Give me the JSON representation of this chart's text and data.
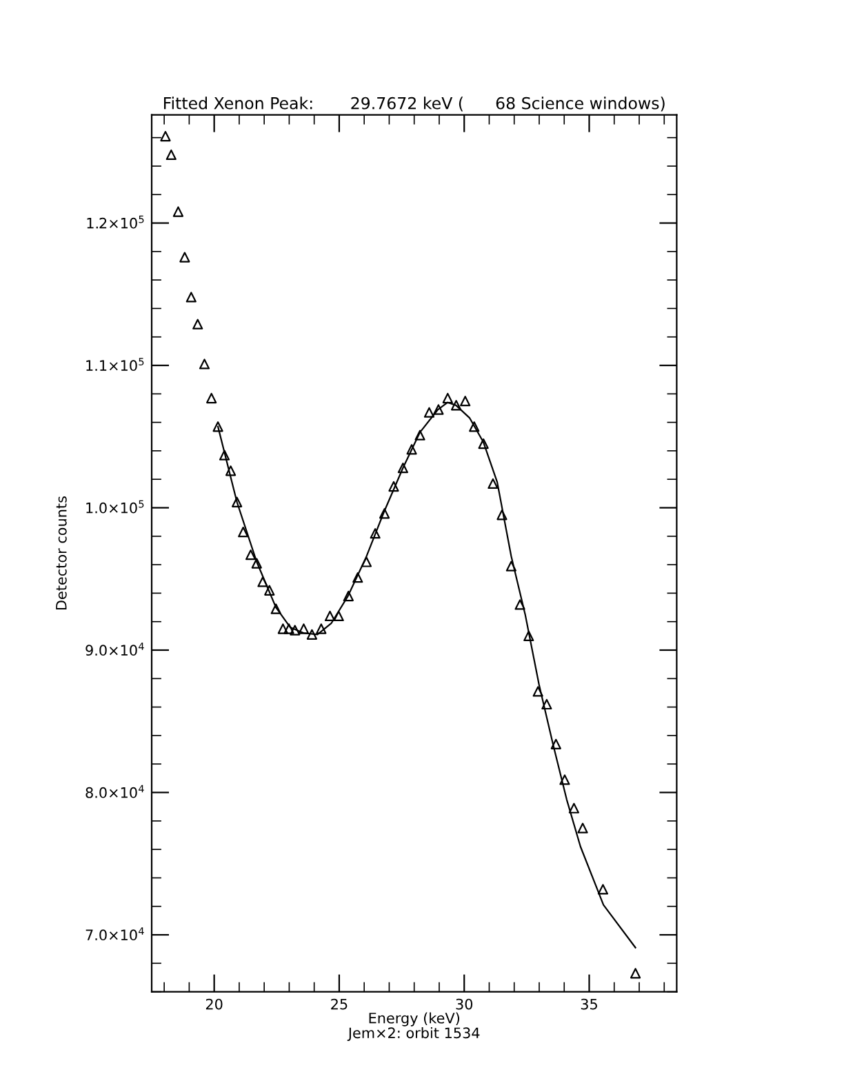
{
  "chart_data": {
    "type": "scatter",
    "title": "Fitted Xenon Peak:       29.7672 keV (      68 Science windows)",
    "xlabel": "Energy (keV)",
    "ylabel": "Detector counts",
    "annotations": [
      "Jem×2: orbit 1534"
    ],
    "xlim": [
      17.5,
      38.5
    ],
    "xticks": [
      20,
      25,
      30,
      35
    ],
    "ylim": [
      66000,
      127600
    ],
    "yticks": [
      {
        "value": 70000,
        "label": "7.0×10$^{4}$"
      },
      {
        "value": 80000,
        "label": "8.0×10$^{4}$"
      },
      {
        "value": 90000,
        "label": "9.0×10$^{4}$"
      },
      {
        "value": 100000,
        "label": "1.0×10$^{5}$"
      },
      {
        "value": 110000,
        "label": "1.1×10$^{5}$"
      },
      {
        "value": 120000,
        "label": "1.2×10$^{5}$"
      }
    ],
    "grid": false,
    "series": [
      {
        "marker": "triangle",
        "color": "#000000",
        "x": [
          18.05,
          18.28,
          18.56,
          18.82,
          19.08,
          19.34,
          19.61,
          19.89,
          20.15,
          20.41,
          20.66,
          20.91,
          21.16,
          21.46,
          21.7,
          21.94,
          22.21,
          22.47,
          22.75,
          22.99,
          23.23,
          23.58,
          23.91,
          24.28,
          24.63,
          24.98,
          25.37,
          25.74,
          26.09,
          26.44,
          26.81,
          27.18,
          27.55,
          27.9,
          28.23,
          28.6,
          28.97,
          29.34,
          29.68,
          30.04,
          30.4,
          30.77,
          31.15,
          31.51,
          31.88,
          32.23,
          32.58,
          32.95,
          33.3,
          33.67,
          34.02,
          34.39,
          34.74,
          35.55,
          36.85
        ],
        "values": [
          126100,
          124800,
          120800,
          117600,
          114800,
          112900,
          110100,
          107700,
          105700,
          103700,
          102600,
          100400,
          98300,
          96700,
          96100,
          94800,
          94200,
          92900,
          91500,
          91500,
          91400,
          91500,
          91100,
          91500,
          92400,
          92400,
          93800,
          95100,
          96200,
          98200,
          99600,
          101500,
          102800,
          104100,
          105100,
          106700,
          106900,
          107700,
          107200,
          107500,
          105700,
          104500,
          101700,
          99500,
          95900,
          93200,
          91000,
          87100,
          86200,
          83400,
          80900,
          78900,
          77500,
          73200,
          67300
        ]
      },
      {
        "type": "line",
        "marker": "none",
        "line_style": "solid",
        "color": "#000000",
        "x": [
          20.15,
          20.91,
          21.7,
          22.47,
          23.04,
          23.58,
          24.13,
          24.69,
          25.35,
          26.07,
          26.79,
          27.55,
          28.23,
          28.95,
          29.34,
          29.67,
          30.22,
          30.77,
          31.32,
          31.88,
          32.44,
          32.99,
          33.55,
          34.1,
          34.65,
          35.57,
          36.85
        ],
        "values": [
          105700,
          100400,
          96200,
          93000,
          91600,
          91200,
          91100,
          91900,
          93800,
          96500,
          99700,
          102800,
          105300,
          106900,
          107400,
          107200,
          106300,
          104600,
          101800,
          96600,
          92500,
          87600,
          83400,
          79500,
          76200,
          72100,
          69100
        ]
      }
    ]
  }
}
